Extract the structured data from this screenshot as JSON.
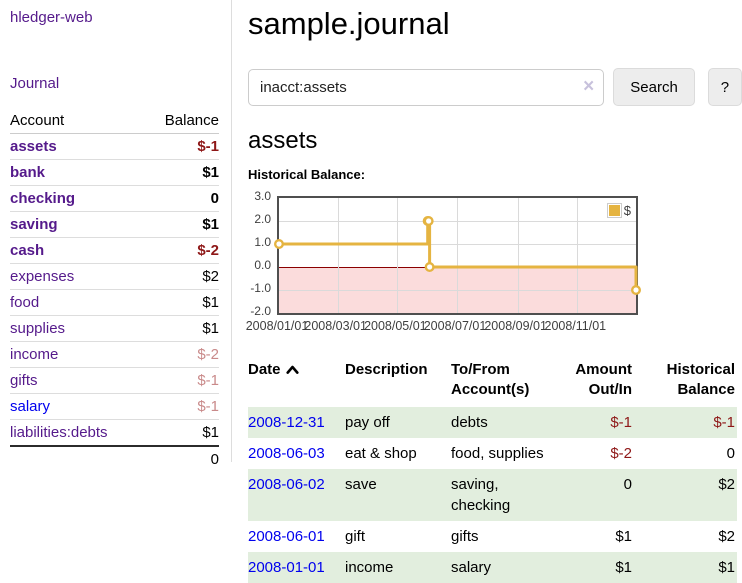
{
  "app": {
    "title": "hledger-web",
    "nav_journal": "Journal"
  },
  "sidebar": {
    "headers": {
      "account": "Account",
      "balance": "Balance"
    },
    "rows": [
      {
        "account": "assets",
        "balance": "$-1",
        "cell_class": "lvl-1",
        "account_class": "strong",
        "balance_class": "neg-strong"
      },
      {
        "account": "bank",
        "balance": "$1",
        "cell_class": "lvl-2",
        "account_class": "strong",
        "balance_class": "plain-strong"
      },
      {
        "account": "checking",
        "balance": "0",
        "cell_class": "lvl-3",
        "account_class": "strong",
        "balance_class": "plain-strong"
      },
      {
        "account": "saving",
        "balance": "$1",
        "cell_class": "lvl-3",
        "account_class": "strong",
        "balance_class": "plain-strong"
      },
      {
        "account": "cash",
        "balance": "$-2",
        "cell_class": "lvl-2",
        "account_class": "strong",
        "balance_class": "neg-strong"
      },
      {
        "account": "expenses",
        "balance": "$2",
        "cell_class": "lvl-1",
        "account_class": "",
        "balance_class": ""
      },
      {
        "account": "food",
        "balance": "$1",
        "cell_class": "lvl-2",
        "account_class": "",
        "balance_class": ""
      },
      {
        "account": "supplies",
        "balance": "$1",
        "cell_class": "lvl-2",
        "account_class": "",
        "balance_class": ""
      },
      {
        "account": "income",
        "balance": "$-2",
        "cell_class": "lvl-1",
        "account_class": "",
        "balance_class": "neg-soft"
      },
      {
        "account": "gifts",
        "balance": "$-1",
        "cell_class": "lvl-2",
        "account_class": "",
        "balance_class": "neg-soft"
      },
      {
        "account": "salary",
        "balance": "$-1",
        "cell_class": "lvl-2",
        "account_class": "blue",
        "balance_class": "neg-soft"
      },
      {
        "account": "liabilities:debts",
        "balance": "$1",
        "cell_class": "lvl-1",
        "account_class": "",
        "balance_class": ""
      }
    ],
    "total": "0"
  },
  "main": {
    "title": "sample.journal",
    "search": {
      "value": "inacct:assets",
      "clear_glyph": "×",
      "button_label": "Search",
      "help_label": "?"
    },
    "account_heading": "assets",
    "chart_label": "Historical Balance:"
  },
  "chart_data": {
    "type": "line",
    "step": true,
    "title": "Historical Balance",
    "series": [
      {
        "name": "$",
        "color": "#e5b441",
        "points": [
          {
            "date": "2008-01-01",
            "value": 1
          },
          {
            "date": "2008-06-01",
            "value": 2
          },
          {
            "date": "2008-06-02",
            "value": 2
          },
          {
            "date": "2008-06-03",
            "value": 0
          },
          {
            "date": "2008-12-31",
            "value": -1
          }
        ]
      }
    ],
    "x_range": [
      "2008-01-01",
      "2008-12-31"
    ],
    "x_ticks": [
      {
        "label": "2008/01/01",
        "date": "2008-01-01"
      },
      {
        "label": "2008/03/01",
        "date": "2008-03-01"
      },
      {
        "label": "2008/05/01",
        "date": "2008-05-01"
      },
      {
        "label": "2008/07/01",
        "date": "2008-07-01"
      },
      {
        "label": "2008/09/01",
        "date": "2008-09-01"
      },
      {
        "label": "2008/11/01",
        "date": "2008-11-01"
      }
    ],
    "ylim": [
      -2,
      3
    ],
    "y_ticks": [
      {
        "label": "3.0",
        "value": 3
      },
      {
        "label": "2.0",
        "value": 2
      },
      {
        "label": "1.0",
        "value": 1
      },
      {
        "label": "0.0",
        "value": 0
      },
      {
        "label": "-1.0",
        "value": -1
      },
      {
        "label": "-2.0",
        "value": -2
      }
    ],
    "grid": true,
    "legend": {
      "label": "$",
      "position": "top-right"
    },
    "negative_region_color": "#fbdcdc",
    "zero_line_color": "#8b0000"
  },
  "register": {
    "headers": {
      "date": "Date",
      "description": "Description",
      "accounts": "To/From Account(s)",
      "amount": "Amount Out/In",
      "balance": "Historical Balance"
    },
    "rows": [
      {
        "date": "2008-12-31",
        "description": "pay off",
        "accounts": "debts",
        "amount": "$-1",
        "amount_class": "neg",
        "balance": "$-1",
        "balance_class": "neg"
      },
      {
        "date": "2008-06-03",
        "description": "eat & shop",
        "accounts": "food, supplies",
        "amount": "$-2",
        "amount_class": "neg",
        "balance": "0",
        "balance_class": ""
      },
      {
        "date": "2008-06-02",
        "description": "save",
        "accounts": "saving, checking",
        "amount": "0",
        "amount_class": "",
        "balance": "$2",
        "balance_class": ""
      },
      {
        "date": "2008-06-01",
        "description": "gift",
        "accounts": "gifts",
        "amount": "$1",
        "amount_class": "",
        "balance": "$2",
        "balance_class": ""
      },
      {
        "date": "2008-01-01",
        "description": "income",
        "accounts": "salary",
        "amount": "$1",
        "amount_class": "",
        "balance": "$1",
        "balance_class": ""
      }
    ]
  }
}
